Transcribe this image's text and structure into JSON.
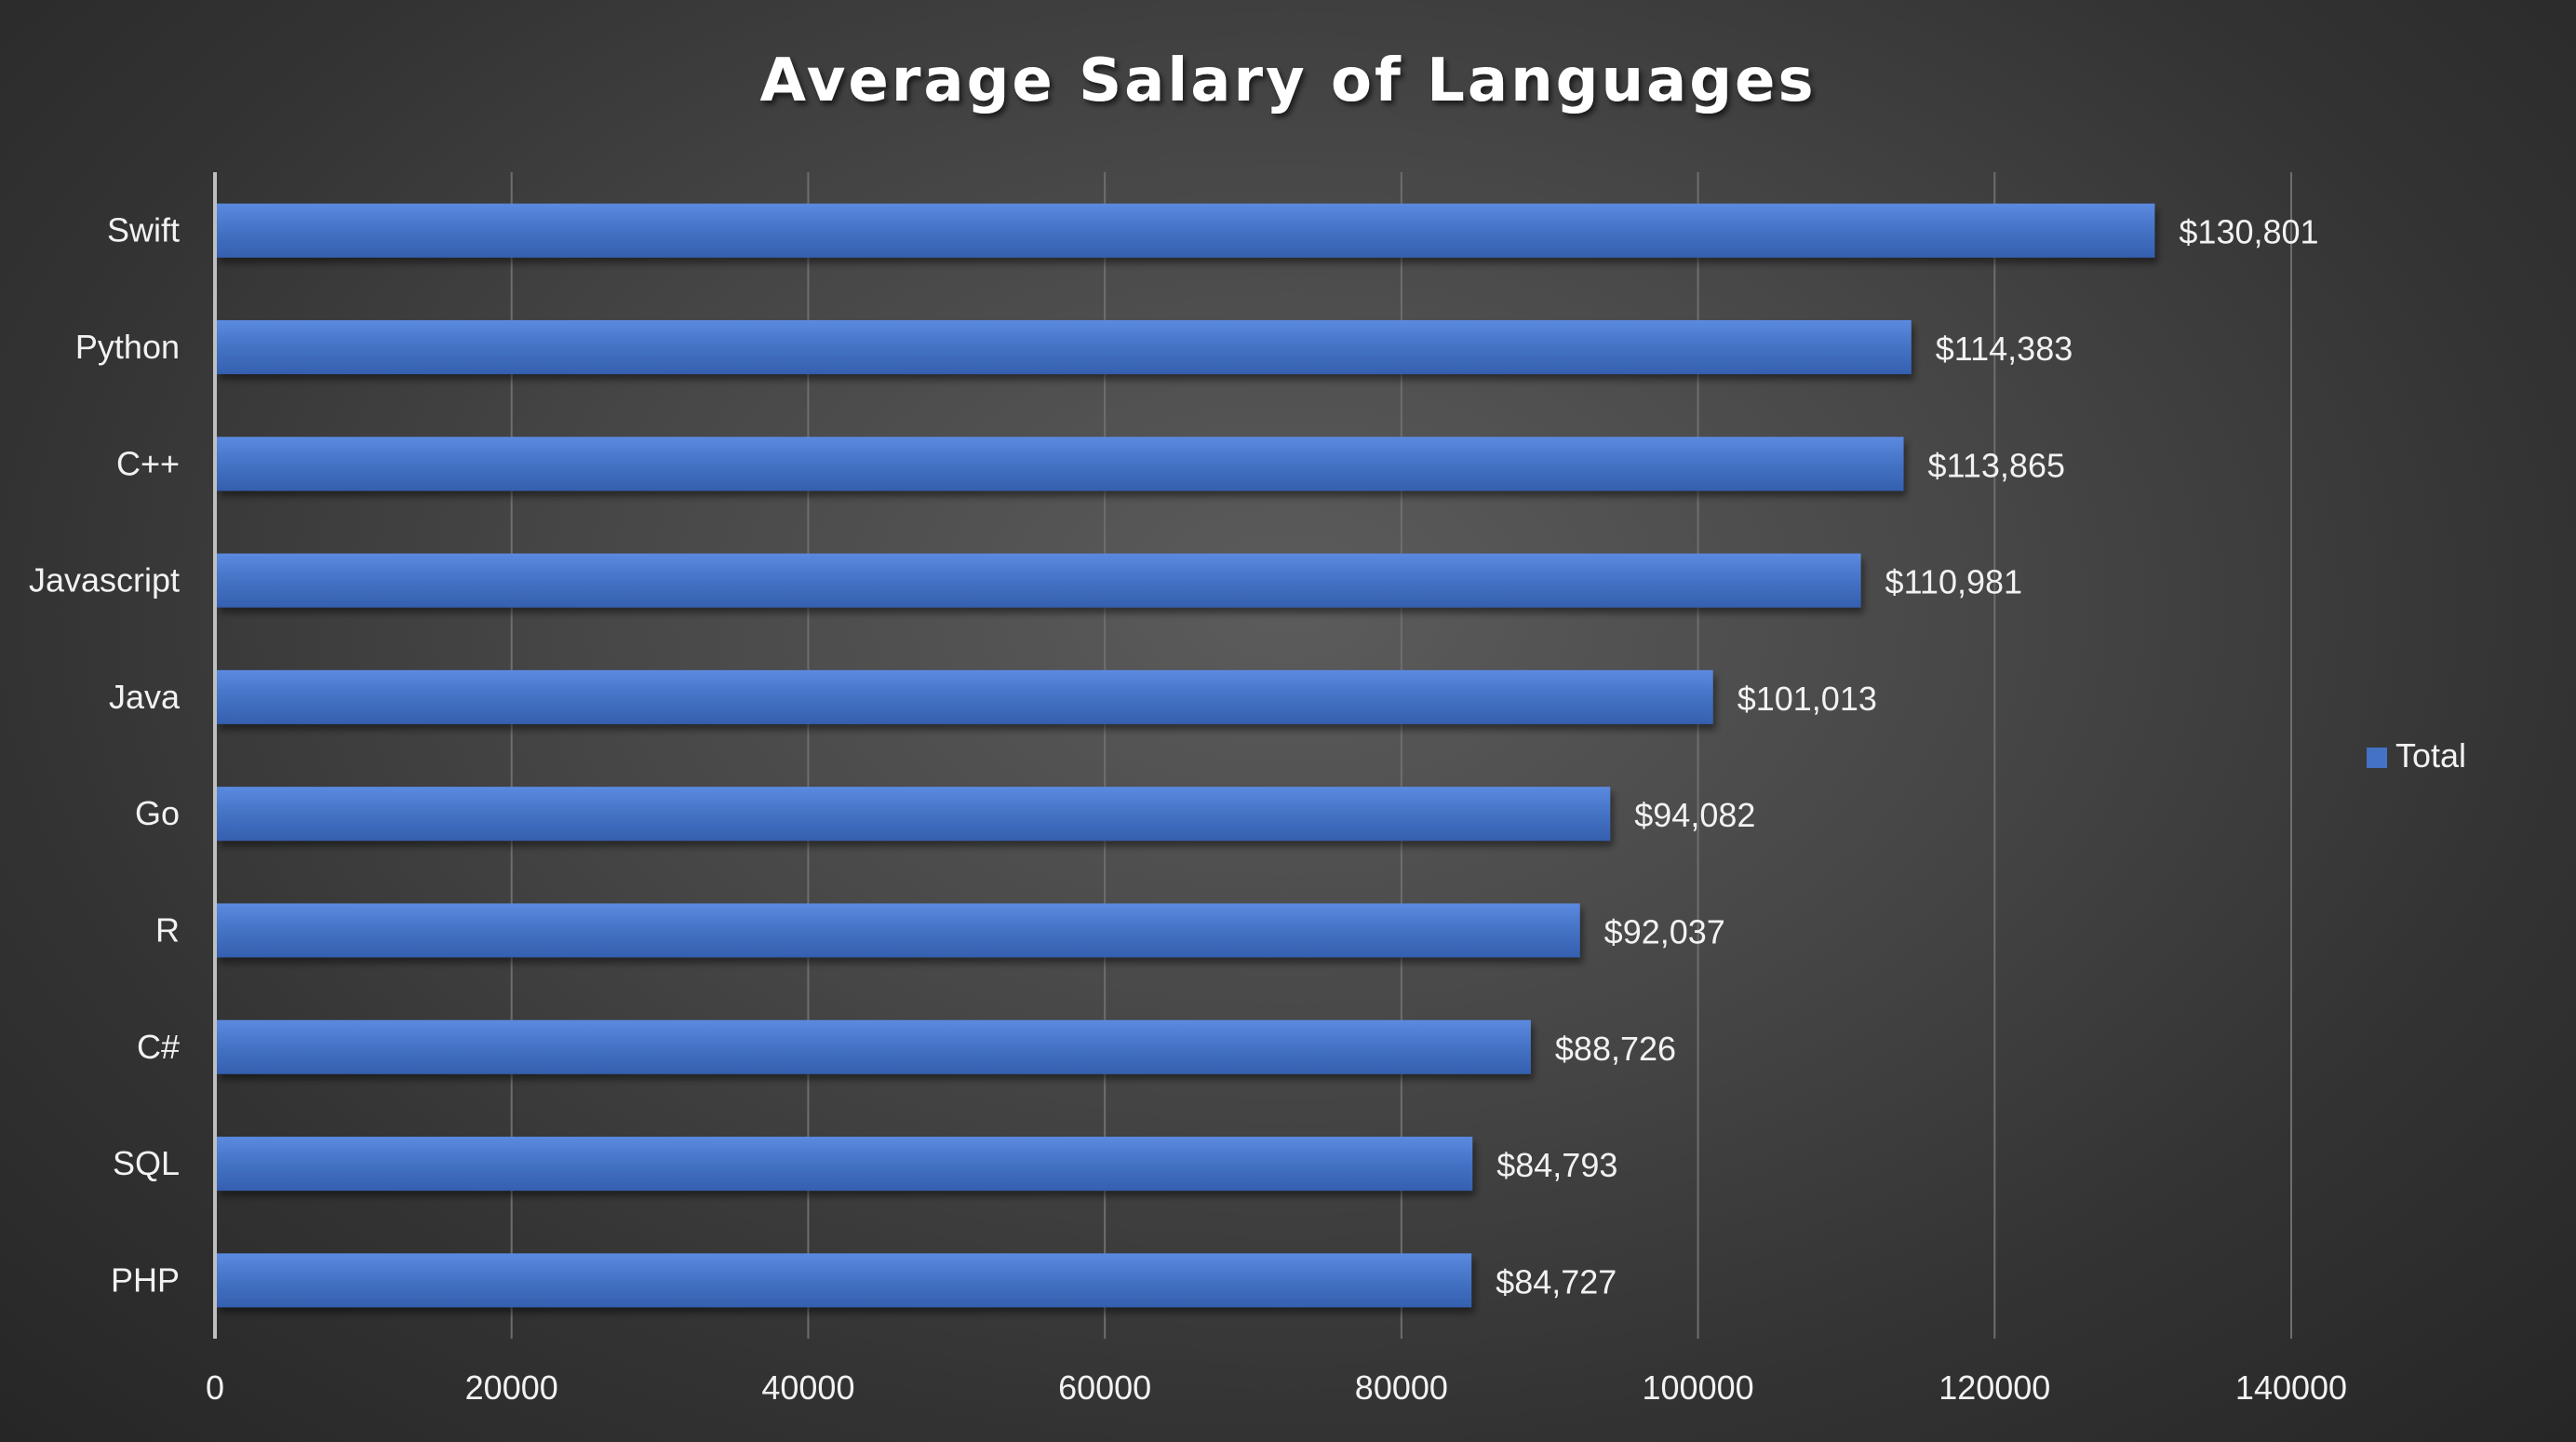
{
  "chart_data": {
    "type": "bar",
    "orientation": "horizontal",
    "title": "Average Salary of Languages",
    "categories": [
      "Swift",
      "Python",
      "C++",
      "Javascript",
      "Java",
      "Go",
      "R",
      "C#",
      "SQL",
      "PHP"
    ],
    "series": [
      {
        "name": "Total",
        "values": [
          130801,
          114383,
          113865,
          110981,
          101013,
          94082,
          92037,
          88726,
          84793,
          84727
        ],
        "labels": [
          "$130,801",
          "$114,383",
          "$113,865",
          "$110,981",
          "$101,013",
          "$94,082",
          "$92,037",
          "$88,726",
          "$84,793",
          "$84,727"
        ],
        "color": "#4472c4"
      }
    ],
    "xlim": [
      0,
      140000
    ],
    "x_ticks": [
      "0",
      "20000",
      "40000",
      "60000",
      "80000",
      "100000",
      "120000",
      "140000"
    ],
    "xlabel": "",
    "ylabel": "",
    "grid": true,
    "legend": "right"
  }
}
